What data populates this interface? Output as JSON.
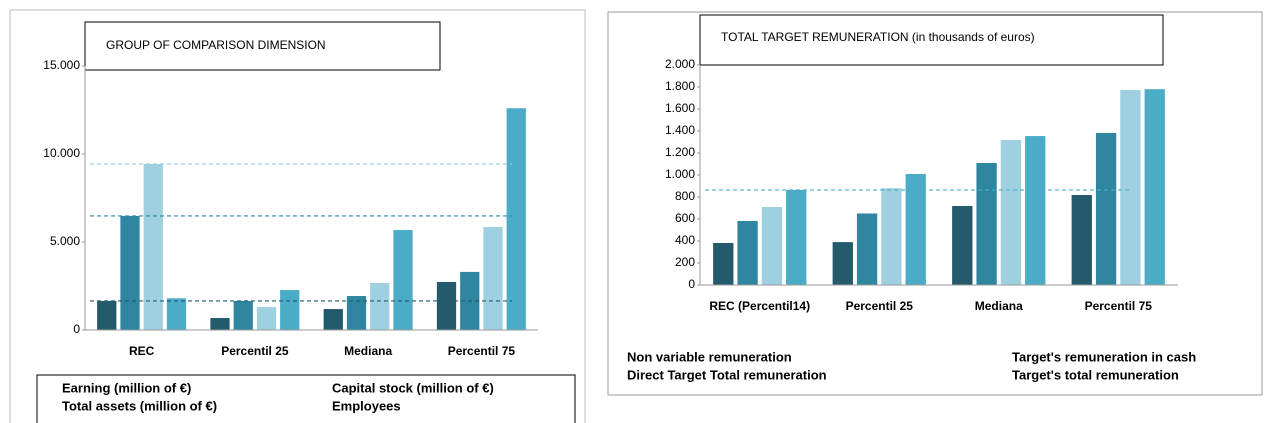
{
  "chart_data": [
    {
      "type": "bar",
      "title": "GROUP OF COMPARISON DIMENSION",
      "categories": [
        "REC",
        "Percentil 25",
        "Mediana",
        "Percentil 75"
      ],
      "series": [
        {
          "name": "Earning (million of €)",
          "color": "#235a6c",
          "values": [
            1650,
            680,
            1190,
            2730
          ]
        },
        {
          "name": "Capital stock (million of €)",
          "color": "#2e86a1",
          "values": [
            6480,
            1650,
            1930,
            3300
          ]
        },
        {
          "name": "Total assets (million of €)",
          "color": "#9ed0e0",
          "values": [
            9430,
            1300,
            2670,
            5850
          ]
        },
        {
          "name": "Employees",
          "color": "#4aacc6",
          "values": [
            1800,
            2270,
            5680,
            12600
          ]
        }
      ],
      "ylim": [
        0,
        15000
      ],
      "yticks": [
        0,
        {
          "value": 5000,
          "label": "5.000"
        },
        {
          "value": 10000,
          "label": "10.000"
        },
        {
          "value": 15000,
          "label": "15.000"
        }
      ],
      "reference_lines": [
        0,
        1,
        2
      ]
    },
    {
      "type": "bar",
      "title": "TOTAL TARGET REMUNERATION (in thousands of euros)",
      "categories": [
        "REC (Percentil14)",
        "Percentil 25",
        "Mediana",
        "Percentil 75"
      ],
      "series": [
        {
          "name": "Non variable remuneration",
          "color": "#235a6c",
          "values": [
            382,
            390,
            718,
            818
          ]
        },
        {
          "name": "Target's remuneration in cash",
          "color": "#2e86a1",
          "values": [
            582,
            650,
            1109,
            1382
          ]
        },
        {
          "name": "Direct Target Total remuneration",
          "color": "#9ed0e0",
          "values": [
            709,
            880,
            1318,
            1773
          ]
        },
        {
          "name": "Target's total remuneration",
          "color": "#4aacc6",
          "values": [
            864,
            1009,
            1354,
            1780
          ]
        }
      ],
      "ylim": [
        0,
        2000
      ],
      "yticks": [
        0,
        200,
        400,
        600,
        800,
        {
          "value": 1000,
          "label": "1.000"
        },
        {
          "value": 1200,
          "label": "1.200"
        },
        {
          "value": 1400,
          "label": "1.400"
        },
        {
          "value": 1600,
          "label": "1.600"
        },
        {
          "value": 1800,
          "label": "1.800"
        },
        {
          "value": 2000,
          "label": "2.000"
        }
      ],
      "reference_lines": [
        3
      ]
    }
  ]
}
